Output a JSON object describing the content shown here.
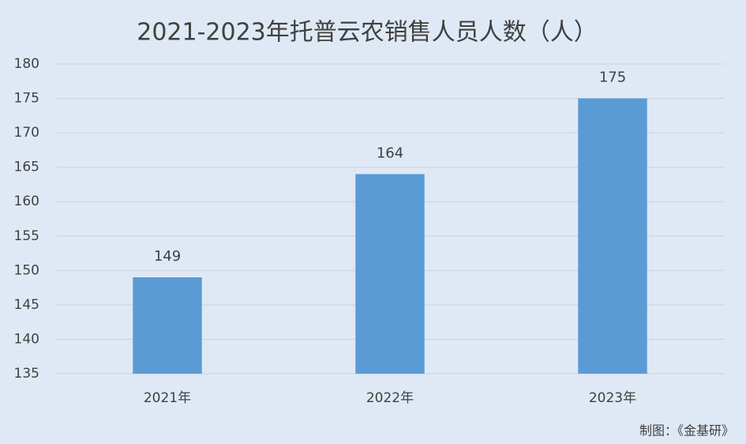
{
  "chart_data": {
    "type": "bar",
    "title": "2021-2023年托普云农销售人员人数（人）",
    "categories": [
      "2021年",
      "2022年",
      "2023年"
    ],
    "values": [
      149,
      164,
      175
    ],
    "color": "#5b9bd5",
    "ylim": [
      135,
      180
    ],
    "yticks": [
      135,
      140,
      145,
      150,
      155,
      160,
      165,
      170,
      175,
      180
    ],
    "grid": true,
    "source": "制图：《金基研》"
  }
}
